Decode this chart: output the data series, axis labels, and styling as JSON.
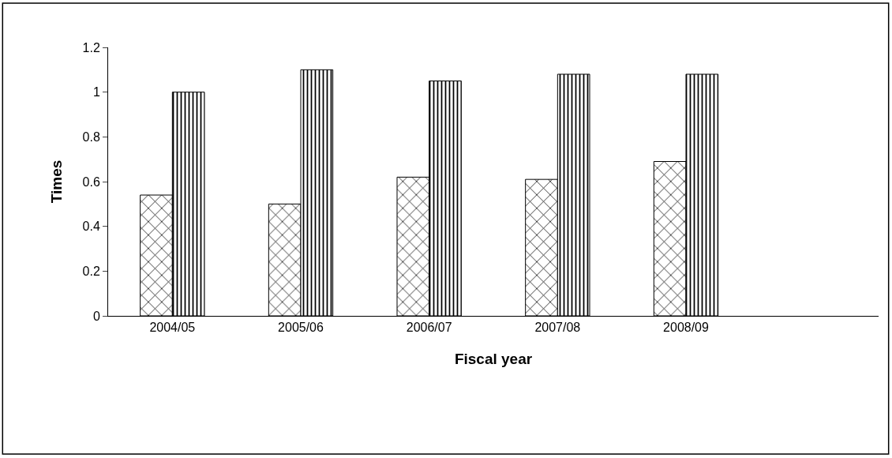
{
  "chart_data": {
    "type": "bar",
    "xlabel": "Fiscal year",
    "ylabel": "Times",
    "categories": [
      "2004/05",
      "2005/06",
      "2006/07",
      "2007/08",
      "2008/09",
      null
    ],
    "series": [
      {
        "color": "#000000",
        "values": [
          0.54,
          0.5,
          0.62,
          0.61,
          0.69,
          null
        ]
      },
      {
        "color": "#000000",
        "values": [
          1.0,
          1.1,
          1.05,
          1.08,
          1.08,
          null
        ]
      }
    ],
    "ylim": [
      0,
      1.2
    ],
    "yticks": [
      0,
      0.2,
      0.4,
      0.6,
      0.8,
      1,
      1.2
    ],
    "grid": false
  }
}
